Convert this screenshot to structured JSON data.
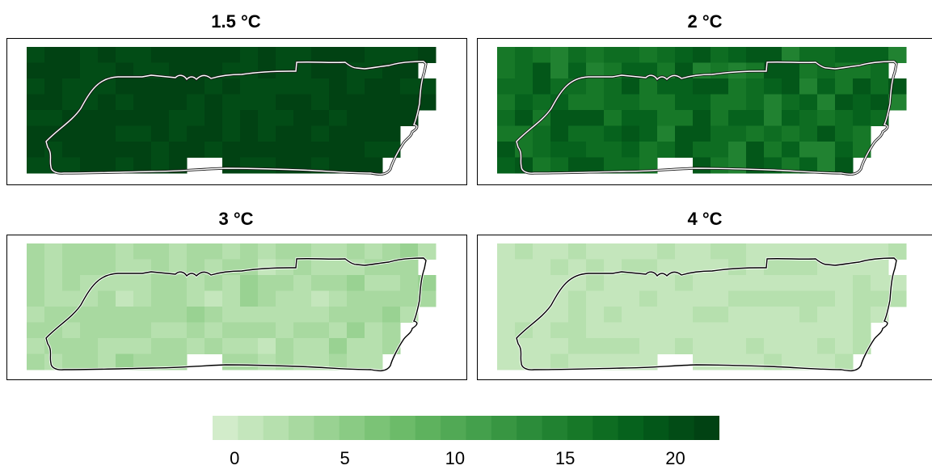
{
  "panels": [
    {
      "title": "1.5 °C",
      "level": 21,
      "variation": 0.6,
      "outline_color": "#ffffff"
    },
    {
      "title": "2 °C",
      "level": 17,
      "variation": 2.4,
      "outline_color": "#ffffff"
    },
    {
      "title": "3 °C",
      "level": 2.5,
      "variation": 1.3,
      "outline_color": "#000000"
    },
    {
      "title": "4 °C",
      "level": 1.2,
      "variation": 0.2,
      "outline_color": "#000000"
    }
  ],
  "colorbar": {
    "min": -1,
    "max": 22,
    "ticks": [
      "0",
      "5",
      "10",
      "15",
      "20"
    ],
    "tick_values": [
      0,
      5,
      10,
      15,
      20
    ],
    "colors": [
      "#d2ecca",
      "#c4e6bc",
      "#b6e0ae",
      "#a8d9a0",
      "#99d292",
      "#8acb84",
      "#7bc376",
      "#6cbb69",
      "#5eb25e",
      "#51a955",
      "#44a04c",
      "#389642",
      "#2c8c3a",
      "#218231",
      "#177828",
      "#0e6d22",
      "#06621d",
      "#035719",
      "#024c16",
      "#014213"
    ]
  }
}
